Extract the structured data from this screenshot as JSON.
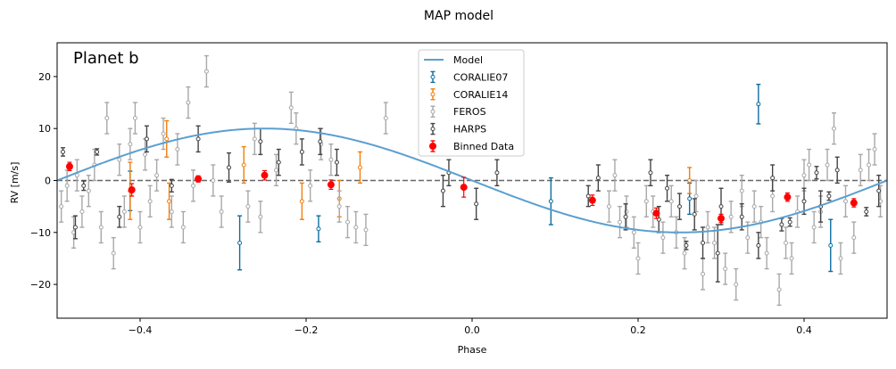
{
  "chart_data": {
    "type": "scatter",
    "title": "MAP model",
    "panel_label": "Planet b",
    "xlabel": "Phase",
    "ylabel": "RV [m/s]",
    "xlim": [
      -0.5,
      0.5
    ],
    "ylim": [
      -26.5,
      26.5
    ],
    "x_ticks": [
      -0.4,
      -0.2,
      0.0,
      0.2,
      0.4
    ],
    "x_tick_labels": [
      "−0.4",
      "−0.2",
      "0.0",
      "0.2",
      "0.4"
    ],
    "y_ticks": [
      -20,
      -10,
      0,
      10,
      20
    ],
    "y_tick_labels": [
      "−20",
      "−10",
      "0",
      "10",
      "20"
    ],
    "grid": false,
    "legend_position": "top-center",
    "model": {
      "name": "Model",
      "color": "#5b9fd1",
      "amplitude": 10.0,
      "phase_of_max": -0.25
    },
    "zero_line": {
      "y": 0,
      "color": "#666666"
    },
    "series": [
      {
        "name": "CORALIE07",
        "color": "#0c6ea0",
        "points": [
          {
            "x": -0.412,
            "y": -2.0,
            "err": 3.8
          },
          {
            "x": -0.28,
            "y": -12.0,
            "err": 5.2
          },
          {
            "x": -0.185,
            "y": -9.3,
            "err": 2.5
          },
          {
            "x": 0.095,
            "y": -4.0,
            "err": 4.5
          },
          {
            "x": 0.262,
            "y": -3.5,
            "err": 3.0
          },
          {
            "x": 0.345,
            "y": 14.7,
            "err": 3.8
          },
          {
            "x": 0.432,
            "y": -12.5,
            "err": 5.0
          }
        ]
      },
      {
        "name": "CORALIE14",
        "color": "#f07f0e",
        "points": [
          {
            "x": -0.412,
            "y": -2.0,
            "err": 5.5
          },
          {
            "x": -0.368,
            "y": 8.0,
            "err": 3.5
          },
          {
            "x": -0.365,
            "y": -4.0,
            "err": 3.5
          },
          {
            "x": -0.275,
            "y": 3.0,
            "err": 3.5
          },
          {
            "x": -0.205,
            "y": -4.0,
            "err": 3.5
          },
          {
            "x": -0.16,
            "y": -3.5,
            "err": 3.5
          },
          {
            "x": -0.135,
            "y": 2.5,
            "err": 3.0
          },
          {
            "x": 0.262,
            "y": 0.0,
            "err": 2.5
          }
        ]
      },
      {
        "name": "FEROS",
        "color": "#a8a8a8",
        "points": [
          {
            "x": -0.495,
            "y": -5.0,
            "err": 3.0
          },
          {
            "x": -0.488,
            "y": -1.0,
            "err": 3.0
          },
          {
            "x": -0.48,
            "y": -10.0,
            "err": 3.0
          },
          {
            "x": -0.476,
            "y": 1.0,
            "err": 3.0
          },
          {
            "x": -0.47,
            "y": -6.0,
            "err": 3.0
          },
          {
            "x": -0.462,
            "y": -2.0,
            "err": 3.0
          },
          {
            "x": -0.455,
            "y": 3.0,
            "err": 3.0
          },
          {
            "x": -0.447,
            "y": -9.0,
            "err": 3.0
          },
          {
            "x": -0.44,
            "y": 12.0,
            "err": 3.0
          },
          {
            "x": -0.432,
            "y": -14.0,
            "err": 3.0
          },
          {
            "x": -0.425,
            "y": 4.0,
            "err": 3.0
          },
          {
            "x": -0.419,
            "y": -6.0,
            "err": 3.0
          },
          {
            "x": -0.412,
            "y": 7.0,
            "err": 3.0
          },
          {
            "x": -0.406,
            "y": 12.0,
            "err": 3.0
          },
          {
            "x": -0.4,
            "y": -9.0,
            "err": 3.0
          },
          {
            "x": -0.394,
            "y": 5.0,
            "err": 3.0
          },
          {
            "x": -0.388,
            "y": -4.0,
            "err": 3.0
          },
          {
            "x": -0.38,
            "y": 1.0,
            "err": 3.0
          },
          {
            "x": -0.372,
            "y": 9.0,
            "err": 3.0
          },
          {
            "x": -0.362,
            "y": -6.0,
            "err": 3.0
          },
          {
            "x": -0.355,
            "y": 6.0,
            "err": 3.0
          },
          {
            "x": -0.348,
            "y": -9.0,
            "err": 3.0
          },
          {
            "x": -0.342,
            "y": 15.0,
            "err": 3.0
          },
          {
            "x": -0.336,
            "y": -1.0,
            "err": 3.0
          },
          {
            "x": -0.32,
            "y": 21.0,
            "err": 3.0
          },
          {
            "x": -0.312,
            "y": 0.0,
            "err": 3.0
          },
          {
            "x": -0.302,
            "y": -6.0,
            "err": 3.0
          },
          {
            "x": -0.27,
            "y": -5.0,
            "err": 3.0
          },
          {
            "x": -0.262,
            "y": 8.0,
            "err": 3.0
          },
          {
            "x": -0.255,
            "y": -7.0,
            "err": 3.0
          },
          {
            "x": -0.236,
            "y": 2.0,
            "err": 3.0
          },
          {
            "x": -0.218,
            "y": 14.0,
            "err": 3.0
          },
          {
            "x": -0.212,
            "y": 10.0,
            "err": 3.0
          },
          {
            "x": -0.195,
            "y": -1.0,
            "err": 3.0
          },
          {
            "x": -0.182,
            "y": 7.0,
            "err": 3.0
          },
          {
            "x": -0.17,
            "y": 4.0,
            "err": 3.0
          },
          {
            "x": -0.16,
            "y": -5.0,
            "err": 3.0
          },
          {
            "x": -0.15,
            "y": -8.0,
            "err": 3.0
          },
          {
            "x": -0.14,
            "y": -9.0,
            "err": 3.0
          },
          {
            "x": -0.128,
            "y": -9.5,
            "err": 3.0
          },
          {
            "x": -0.104,
            "y": 12.0,
            "err": 3.0
          },
          {
            "x": 0.165,
            "y": -5.0,
            "err": 3.0
          },
          {
            "x": 0.172,
            "y": 1.0,
            "err": 3.0
          },
          {
            "x": 0.178,
            "y": -8.0,
            "err": 3.0
          },
          {
            "x": 0.186,
            "y": -6.0,
            "err": 3.0
          },
          {
            "x": 0.195,
            "y": -10.0,
            "err": 3.0
          },
          {
            "x": 0.2,
            "y": -15.0,
            "err": 3.0
          },
          {
            "x": 0.21,
            "y": -4.0,
            "err": 3.0
          },
          {
            "x": 0.218,
            "y": -6.0,
            "err": 3.0
          },
          {
            "x": 0.23,
            "y": -11.0,
            "err": 3.0
          },
          {
            "x": 0.24,
            "y": -4.0,
            "err": 3.0
          },
          {
            "x": 0.246,
            "y": -10.0,
            "err": 3.0
          },
          {
            "x": 0.256,
            "y": -14.0,
            "err": 3.0
          },
          {
            "x": 0.27,
            "y": -3.0,
            "err": 3.0
          },
          {
            "x": 0.278,
            "y": -18.0,
            "err": 3.0
          },
          {
            "x": 0.284,
            "y": -9.0,
            "err": 3.0
          },
          {
            "x": 0.292,
            "y": -12.0,
            "err": 3.0
          },
          {
            "x": 0.305,
            "y": -17.0,
            "err": 3.0
          },
          {
            "x": 0.312,
            "y": -7.0,
            "err": 3.0
          },
          {
            "x": 0.318,
            "y": -20.0,
            "err": 3.0
          },
          {
            "x": 0.325,
            "y": -2.0,
            "err": 3.0
          },
          {
            "x": 0.332,
            "y": -11.0,
            "err": 3.0
          },
          {
            "x": 0.34,
            "y": -5.0,
            "err": 3.0
          },
          {
            "x": 0.348,
            "y": -8.0,
            "err": 3.0
          },
          {
            "x": 0.355,
            "y": -14.0,
            "err": 3.0
          },
          {
            "x": 0.362,
            "y": -3.0,
            "err": 3.0
          },
          {
            "x": 0.37,
            "y": -21.0,
            "err": 3.0
          },
          {
            "x": 0.378,
            "y": -12.0,
            "err": 3.0
          },
          {
            "x": 0.385,
            "y": -15.0,
            "err": 3.0
          },
          {
            "x": 0.392,
            "y": -6.0,
            "err": 3.0
          },
          {
            "x": 0.4,
            "y": 1.0,
            "err": 3.0
          },
          {
            "x": 0.406,
            "y": 3.0,
            "err": 3.0
          },
          {
            "x": 0.412,
            "y": -9.0,
            "err": 3.0
          },
          {
            "x": 0.42,
            "y": -6.0,
            "err": 3.0
          },
          {
            "x": 0.428,
            "y": 3.0,
            "err": 3.0
          },
          {
            "x": 0.436,
            "y": 10.0,
            "err": 3.0
          },
          {
            "x": 0.444,
            "y": -15.0,
            "err": 3.0
          },
          {
            "x": 0.45,
            "y": -4.0,
            "err": 3.0
          },
          {
            "x": 0.46,
            "y": -11.0,
            "err": 3.0
          },
          {
            "x": 0.468,
            "y": 2.0,
            "err": 3.0
          },
          {
            "x": 0.478,
            "y": 3.0,
            "err": 3.0
          },
          {
            "x": 0.485,
            "y": 6.0,
            "err": 3.0
          },
          {
            "x": 0.492,
            "y": -4.0,
            "err": 3.0
          }
        ]
      },
      {
        "name": "HARPS",
        "color": "#444444",
        "points": [
          {
            "x": -0.493,
            "y": 5.5,
            "err": 0.8
          },
          {
            "x": -0.478,
            "y": -9.0,
            "err": 2.2
          },
          {
            "x": -0.468,
            "y": -1.0,
            "err": 0.9
          },
          {
            "x": -0.452,
            "y": 5.5,
            "err": 0.6
          },
          {
            "x": -0.425,
            "y": -7.0,
            "err": 2.0
          },
          {
            "x": -0.392,
            "y": 8.0,
            "err": 2.5
          },
          {
            "x": -0.362,
            "y": -1.0,
            "err": 1.2
          },
          {
            "x": -0.33,
            "y": 8.0,
            "err": 2.5
          },
          {
            "x": -0.293,
            "y": 2.5,
            "err": 2.8
          },
          {
            "x": -0.255,
            "y": 7.5,
            "err": 2.5
          },
          {
            "x": -0.233,
            "y": 3.5,
            "err": 2.5
          },
          {
            "x": -0.205,
            "y": 5.5,
            "err": 2.5
          },
          {
            "x": -0.183,
            "y": 7.5,
            "err": 2.5
          },
          {
            "x": -0.163,
            "y": 3.5,
            "err": 2.5
          },
          {
            "x": -0.035,
            "y": -2.0,
            "err": 3.0
          },
          {
            "x": -0.028,
            "y": 1.5,
            "err": 2.5
          },
          {
            "x": 0.005,
            "y": -4.5,
            "err": 3.0
          },
          {
            "x": 0.03,
            "y": 1.5,
            "err": 2.5
          },
          {
            "x": 0.14,
            "y": -3.0,
            "err": 2.0
          },
          {
            "x": 0.152,
            "y": 0.5,
            "err": 2.5
          },
          {
            "x": 0.185,
            "y": -7.0,
            "err": 2.5
          },
          {
            "x": 0.215,
            "y": 1.5,
            "err": 2.5
          },
          {
            "x": 0.225,
            "y": -7.5,
            "err": 2.5
          },
          {
            "x": 0.235,
            "y": -1.5,
            "err": 2.5
          },
          {
            "x": 0.25,
            "y": -5.0,
            "err": 2.5
          },
          {
            "x": 0.258,
            "y": -12.5,
            "err": 0.8
          },
          {
            "x": 0.268,
            "y": -6.5,
            "err": 3.0
          },
          {
            "x": 0.278,
            "y": -12.0,
            "err": 3.0
          },
          {
            "x": 0.296,
            "y": -14.0,
            "err": 5.5
          },
          {
            "x": 0.3,
            "y": -5.0,
            "err": 3.5
          },
          {
            "x": 0.325,
            "y": -7.0,
            "err": 2.5
          },
          {
            "x": 0.345,
            "y": -12.5,
            "err": 2.5
          },
          {
            "x": 0.362,
            "y": 0.5,
            "err": 2.5
          },
          {
            "x": 0.373,
            "y": -8.5,
            "err": 1.2
          },
          {
            "x": 0.383,
            "y": -8.0,
            "err": 0.8
          },
          {
            "x": 0.4,
            "y": -4.0,
            "err": 2.5
          },
          {
            "x": 0.415,
            "y": 1.5,
            "err": 1.2
          },
          {
            "x": 0.42,
            "y": -5.0,
            "err": 3.0
          },
          {
            "x": 0.43,
            "y": -3.0,
            "err": 0.8
          },
          {
            "x": 0.44,
            "y": 2.0,
            "err": 2.5
          },
          {
            "x": 0.475,
            "y": -6.0,
            "err": 0.8
          },
          {
            "x": 0.49,
            "y": -2.0,
            "err": 3.0
          }
        ]
      },
      {
        "name": "Binned Data",
        "color": "#ff0000",
        "points": [
          {
            "x": -0.485,
            "y": 2.7,
            "err": 0.8
          },
          {
            "x": -0.41,
            "y": -1.8,
            "err": 1.2
          },
          {
            "x": -0.33,
            "y": 0.3,
            "err": 0.6
          },
          {
            "x": -0.25,
            "y": 1.0,
            "err": 0.9
          },
          {
            "x": -0.17,
            "y": -0.8,
            "err": 0.9
          },
          {
            "x": -0.01,
            "y": -1.3,
            "err": 1.9
          },
          {
            "x": 0.145,
            "y": -3.8,
            "err": 1.0
          },
          {
            "x": 0.222,
            "y": -6.3,
            "err": 1.0
          },
          {
            "x": 0.3,
            "y": -7.3,
            "err": 0.8
          },
          {
            "x": 0.38,
            "y": -3.2,
            "err": 0.8
          },
          {
            "x": 0.46,
            "y": -4.3,
            "err": 0.8
          }
        ]
      }
    ]
  }
}
